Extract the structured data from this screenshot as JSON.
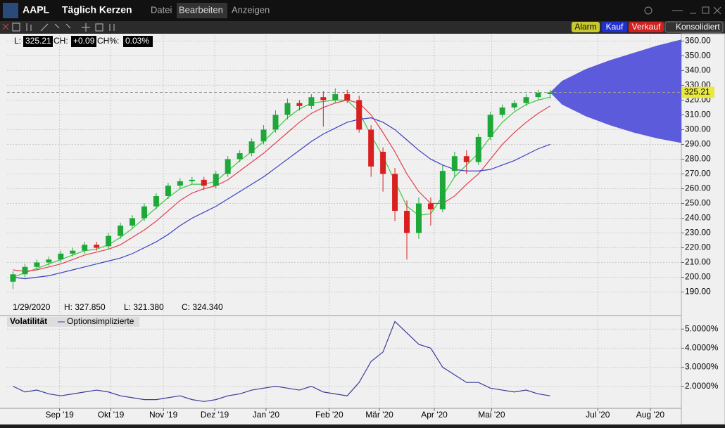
{
  "window": {
    "symbol": "AAPL",
    "chart_type": "Täglich Kerzen",
    "menus": [
      "Datei",
      "Bearbeiten",
      "Anzeigen"
    ]
  },
  "buttons": [
    "Alarm",
    "Kauf",
    "Verkauf",
    "Konsolidiert"
  ],
  "quote": {
    "last_label": "L:",
    "last": "325.21",
    "change_label": "CH:",
    "change": "+0.09",
    "change_pct_label": "CH%:",
    "change_pct": "0.03%"
  },
  "ohlc_readout": {
    "date": "1/29/2020",
    "high": "H: 327.850",
    "low": "L: 321.380",
    "close": "C: 324.340"
  },
  "chart_data": [
    {
      "type": "candlestick",
      "x": [
        0,
        1,
        2,
        3,
        4,
        5,
        6,
        7,
        8,
        9,
        10,
        11,
        12,
        13,
        14,
        15,
        16,
        17,
        18,
        19,
        20,
        21,
        22,
        23,
        24,
        25,
        26,
        27,
        28,
        29,
        30,
        31,
        32,
        33,
        34,
        35,
        36,
        37,
        38,
        39,
        40,
        41,
        42,
        43,
        44,
        45
      ],
      "open": [
        197,
        202,
        207,
        210,
        212,
        216,
        218,
        222,
        221,
        228,
        235,
        240,
        248,
        255,
        262,
        265,
        266,
        262,
        270,
        280,
        284,
        292,
        300,
        310,
        318,
        316,
        322,
        320,
        324,
        320,
        300,
        285,
        270,
        245,
        230,
        250,
        246,
        272,
        282,
        278,
        295,
        310,
        315,
        318,
        322,
        324
      ],
      "high": [
        204,
        209,
        212,
        214,
        218,
        220,
        224,
        224,
        230,
        237,
        242,
        250,
        257,
        264,
        267,
        268,
        268,
        272,
        282,
        286,
        294,
        303,
        313,
        321,
        320,
        324,
        326,
        328,
        327,
        323,
        303,
        288,
        274,
        252,
        254,
        254,
        276,
        285,
        286,
        297,
        312,
        317,
        320,
        324,
        327,
        327
      ],
      "low": [
        192,
        200,
        205,
        208,
        210,
        214,
        216,
        218,
        219,
        226,
        233,
        238,
        246,
        253,
        260,
        263,
        259,
        260,
        268,
        278,
        282,
        290,
        298,
        307,
        313,
        314,
        302,
        318,
        318,
        298,
        268,
        258,
        238,
        212,
        226,
        235,
        244,
        268,
        270,
        276,
        293,
        308,
        313,
        316,
        320,
        321
      ],
      "close": [
        202,
        207,
        210,
        212,
        216,
        218,
        222,
        220,
        228,
        235,
        240,
        248,
        255,
        262,
        265,
        266,
        262,
        270,
        280,
        284,
        292,
        300,
        310,
        318,
        316,
        322,
        320,
        324,
        320,
        300,
        275,
        270,
        245,
        230,
        250,
        246,
        272,
        282,
        278,
        295,
        310,
        315,
        318,
        322,
        325,
        325.21
      ],
      "up_color": "#1fa83a",
      "down_color": "#d92020",
      "moving_averages": [
        {
          "color": "#3cc83c",
          "values": [
            200,
            203,
            206,
            209,
            212,
            215,
            218,
            219,
            222,
            227,
            233,
            240,
            247,
            254,
            260,
            263,
            263,
            265,
            272,
            279,
            285,
            292,
            300,
            308,
            314,
            318,
            319,
            320,
            320,
            312,
            296,
            282,
            265,
            248,
            242,
            243,
            255,
            268,
            276,
            284,
            295,
            305,
            312,
            317,
            320,
            322
          ]
        },
        {
          "color": "#e0404e",
          "values": [
            205,
            204,
            205,
            207,
            209,
            212,
            215,
            217,
            219,
            222,
            227,
            232,
            238,
            245,
            252,
            257,
            260,
            262,
            266,
            272,
            278,
            284,
            291,
            298,
            305,
            311,
            315,
            318,
            320,
            318,
            310,
            298,
            285,
            270,
            258,
            250,
            250,
            255,
            263,
            270,
            280,
            290,
            298,
            305,
            311,
            316
          ]
        },
        {
          "color": "#3a40c0",
          "values": [
            200,
            199,
            200,
            201,
            203,
            205,
            207,
            209,
            211,
            213,
            216,
            220,
            224,
            229,
            235,
            240,
            244,
            248,
            253,
            258,
            263,
            268,
            274,
            280,
            286,
            292,
            297,
            301,
            305,
            307,
            308,
            305,
            300,
            293,
            286,
            280,
            276,
            273,
            272,
            272,
            273,
            276,
            279,
            283,
            287,
            290
          ]
        }
      ],
      "projection": {
        "color": "#5b5bdc",
        "x": [
          45,
          46,
          48,
          50,
          52,
          54,
          56
        ],
        "upper": [
          325.21,
          333,
          341,
          347,
          352,
          357,
          361
        ],
        "lower": [
          325.21,
          317,
          309,
          303,
          298,
          294,
          291
        ]
      },
      "ylim": [
        175,
        364
      ],
      "yticks": [
        {
          "value": 190,
          "label": "190.00"
        },
        {
          "value": 200,
          "label": "200.00"
        },
        {
          "value": 210,
          "label": "210.00"
        },
        {
          "value": 220,
          "label": "220.00"
        },
        {
          "value": 230,
          "label": "230.00"
        },
        {
          "value": 240,
          "label": "240.00"
        },
        {
          "value": 250,
          "label": "250.00"
        },
        {
          "value": 260,
          "label": "260.00"
        },
        {
          "value": 270,
          "label": "270.00"
        },
        {
          "value": 280,
          "label": "280.00"
        },
        {
          "value": 290,
          "label": "290.00"
        },
        {
          "value": 300,
          "label": "300.00"
        },
        {
          "value": 310,
          "label": "310.00"
        },
        {
          "value": 320,
          "label": "320.00"
        },
        {
          "value": 330,
          "label": "330.00"
        },
        {
          "value": 340,
          "label": "340.00"
        },
        {
          "value": 350,
          "label": "350.00"
        },
        {
          "value": 360,
          "label": "360.00"
        }
      ],
      "xlim": [
        -0.5,
        56
      ],
      "grid": true
    },
    {
      "type": "line",
      "title": "Volatilität",
      "x": [
        0,
        1,
        2,
        3,
        4,
        5,
        6,
        7,
        8,
        9,
        10,
        11,
        12,
        13,
        14,
        15,
        16,
        17,
        18,
        19,
        20,
        21,
        22,
        23,
        24,
        25,
        26,
        27,
        28,
        29,
        30,
        31,
        32,
        33,
        34,
        35,
        36,
        37,
        38,
        39,
        40,
        41,
        42,
        43,
        44,
        45
      ],
      "series": [
        {
          "name": "Optionsimplizierte",
          "color": "#3a3a9a",
          "values": [
            2.0,
            1.7,
            1.8,
            1.6,
            1.5,
            1.6,
            1.7,
            1.8,
            1.7,
            1.5,
            1.4,
            1.3,
            1.3,
            1.4,
            1.5,
            1.3,
            1.2,
            1.3,
            1.5,
            1.6,
            1.8,
            1.9,
            2.0,
            1.9,
            1.8,
            2.0,
            1.7,
            1.6,
            1.5,
            2.2,
            3.3,
            3.8,
            5.4,
            4.8,
            4.2,
            4.0,
            3.0,
            2.6,
            2.2,
            2.2,
            1.9,
            1.8,
            1.7,
            1.8,
            1.6,
            1.5
          ]
        }
      ],
      "ylim": [
        0.88,
        5.6
      ],
      "yticks": [
        {
          "value": 2,
          "label": "2.0000%"
        },
        {
          "value": 3,
          "label": "3.0000%"
        },
        {
          "value": 4,
          "label": "4.0000%"
        },
        {
          "value": 5,
          "label": "5.0000%"
        }
      ],
      "xlim": [
        -0.5,
        56
      ],
      "xticks": [
        {
          "value": 3.9,
          "label": "Sep '19"
        },
        {
          "value": 8.2,
          "label": "Okt '19"
        },
        {
          "value": 12.6,
          "label": "Nov '19"
        },
        {
          "value": 16.9,
          "label": "Dez '19"
        },
        {
          "value": 21.2,
          "label": "Jan '20"
        },
        {
          "value": 26.5,
          "label": "Feb '20"
        },
        {
          "value": 30.7,
          "label": "Mär '20"
        },
        {
          "value": 35.3,
          "label": "Apr '20"
        },
        {
          "value": 40.1,
          "label": "Mai '20"
        },
        {
          "value": 49.0,
          "label": "Jul '20"
        },
        {
          "value": 53.4,
          "label": "Aug '20"
        }
      ],
      "grid": true
    }
  ]
}
